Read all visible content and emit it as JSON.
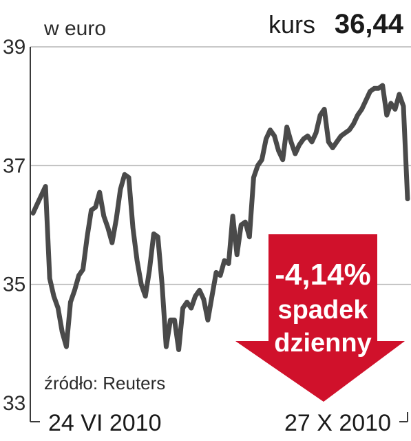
{
  "header": {
    "unit": "w euro",
    "kurs_label": "kurs",
    "kurs_value": "36,44"
  },
  "source": "źródło: Reuters",
  "callout": {
    "percent": "-4,14%",
    "line1": "spadek",
    "line2": "dzienny",
    "color": "#d0112b"
  },
  "colors": {
    "line": "#4a4a4a",
    "grid": "#b5b5b5",
    "frame": "#3a3a3a"
  },
  "chart_data": {
    "type": "line",
    "title": "",
    "xlabel": "",
    "ylabel": "",
    "ylim": [
      33,
      39
    ],
    "yticks": [
      33,
      35,
      37,
      39
    ],
    "ytick_labels": [
      "33",
      "35",
      "37",
      "39"
    ],
    "x_start_label": "24 VI 2010",
    "x_end_label": "27 X 2010",
    "grid": true,
    "series": [
      {
        "values": [
          36.2,
          36.35,
          36.5,
          36.65,
          35.1,
          34.8,
          34.6,
          34.2,
          33.95,
          34.7,
          34.9,
          35.15,
          35.25,
          35.8,
          36.25,
          36.3,
          36.55,
          36.15,
          35.95,
          35.7,
          36.1,
          36.6,
          36.85,
          36.8,
          35.95,
          35.4,
          35.0,
          34.8,
          35.25,
          35.85,
          35.8,
          35.0,
          33.95,
          34.4,
          34.4,
          33.9,
          34.6,
          34.7,
          34.6,
          34.8,
          34.9,
          34.75,
          34.4,
          34.8,
          35.2,
          35.15,
          35.4,
          35.35,
          36.15,
          35.5,
          36.0,
          36.05,
          35.8,
          36.8,
          37.0,
          37.1,
          37.45,
          37.6,
          37.5,
          37.25,
          37.1,
          37.65,
          37.4,
          37.2,
          37.35,
          37.45,
          37.5,
          37.4,
          37.55,
          37.85,
          37.95,
          37.4,
          37.3,
          37.4,
          37.5,
          37.55,
          37.6,
          37.7,
          37.85,
          37.95,
          38.1,
          38.25,
          38.3,
          38.3,
          38.35,
          37.85,
          38.05,
          37.95,
          38.2,
          38.0,
          36.44
        ]
      }
    ]
  }
}
